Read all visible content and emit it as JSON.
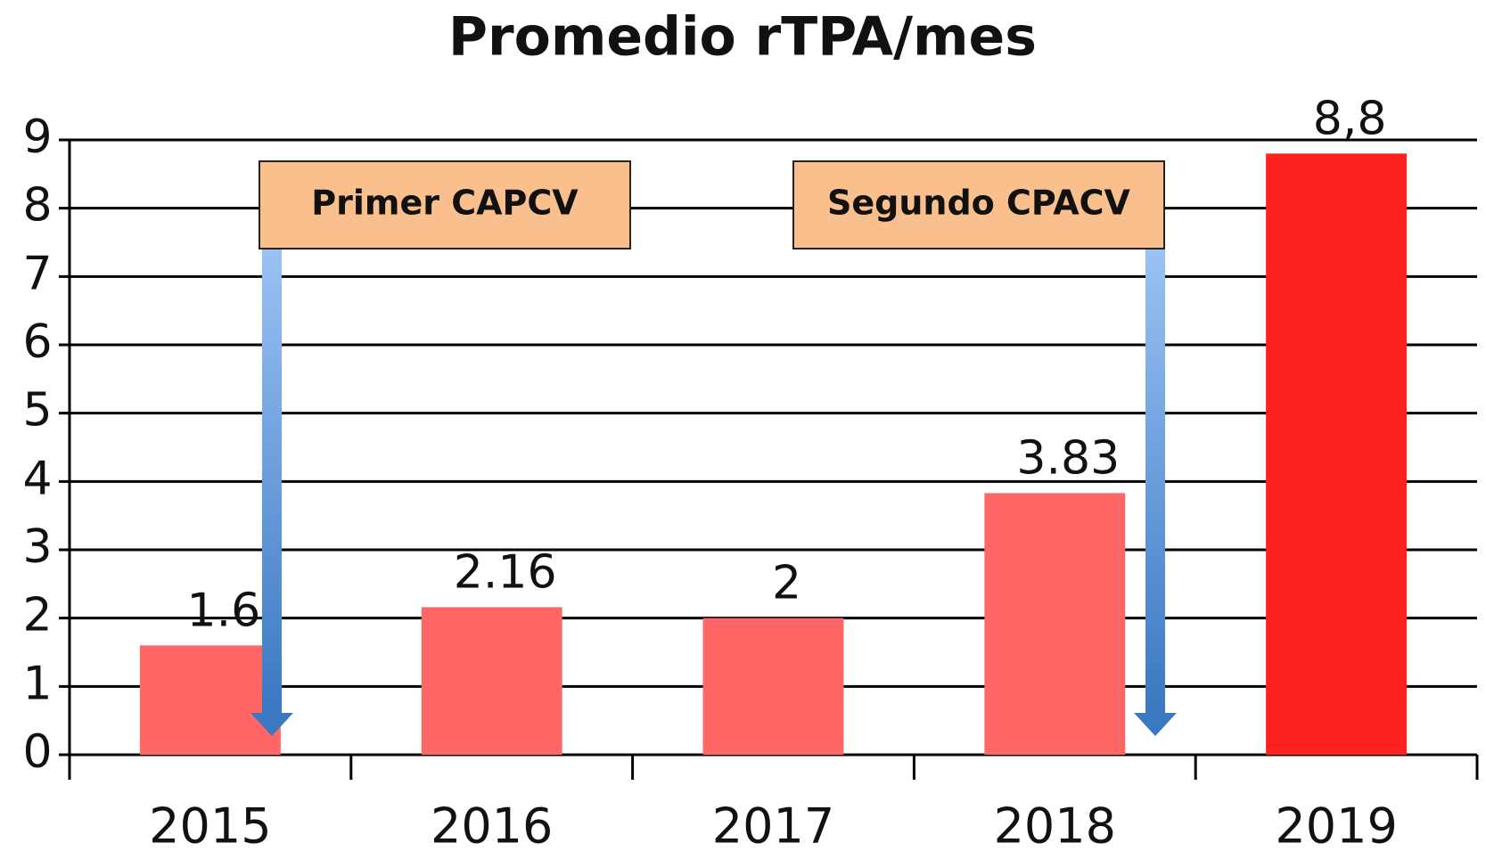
{
  "chart_data": {
    "type": "bar",
    "title": "Promedio rTPA/mes",
    "categories": [
      "2015",
      "2016",
      "2017",
      "2018",
      "2019"
    ],
    "values": [
      1.6,
      2.16,
      2,
      3.83,
      8.8
    ],
    "value_labels": [
      "1.6",
      "2.16",
      "2",
      "3.83",
      "8,8"
    ],
    "colors": [
      "#ff6666",
      "#ff6666",
      "#ff6666",
      "#ff6666",
      "#ff2020"
    ],
    "ylim": [
      0,
      9
    ],
    "yticks": [
      0,
      1,
      2,
      3,
      4,
      5,
      6,
      7,
      8,
      9
    ],
    "grid": true,
    "annotations": [
      "Primer CAPCV",
      "Segundo CPACV"
    ]
  }
}
